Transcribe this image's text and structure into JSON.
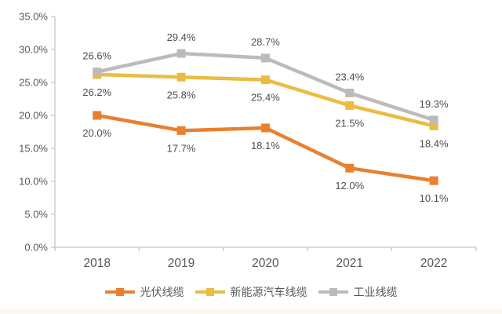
{
  "chart_data": {
    "type": "line",
    "categories": [
      "2018",
      "2019",
      "2020",
      "2021",
      "2022"
    ],
    "series": [
      {
        "name": "光伏线缆",
        "color": "#E8802F",
        "values": [
          20.0,
          17.7,
          18.1,
          12.0,
          10.1
        ],
        "data_labels": [
          "20.0%",
          "17.7%",
          "18.1%",
          "12.0%",
          "10.1%"
        ],
        "label_position": "below"
      },
      {
        "name": "新能源汽车线缆",
        "color": "#EBBC43",
        "values": [
          26.2,
          25.8,
          25.4,
          21.5,
          18.4
        ],
        "data_labels": [
          "26.2%",
          "25.8%",
          "25.4%",
          "21.5%",
          "18.4%"
        ],
        "label_position": "below"
      },
      {
        "name": "工业线缆",
        "color": "#BDBBB7",
        "values": [
          26.6,
          29.4,
          28.7,
          23.4,
          19.3
        ],
        "data_labels": [
          "26.6%",
          "29.4%",
          "28.7%",
          "23.4%",
          "19.3%"
        ],
        "label_position": "above"
      }
    ],
    "y_tick_labels": [
      "0.0%",
      "5.0%",
      "10.0%",
      "15.0%",
      "20.0%",
      "25.0%",
      "30.0%",
      "35.0%"
    ],
    "ylim": [
      0,
      35
    ],
    "y_tick_step": 5,
    "title": "",
    "xlabel": "",
    "ylabel": "",
    "grid": false,
    "legend_position": "bottom"
  },
  "colors": {
    "background": "#FFFFFF",
    "axis": "#C9C6C2",
    "tick_text": "#595959",
    "data_label_text": "#4E4E4E",
    "bottom_strip": "#FBF8F0"
  }
}
